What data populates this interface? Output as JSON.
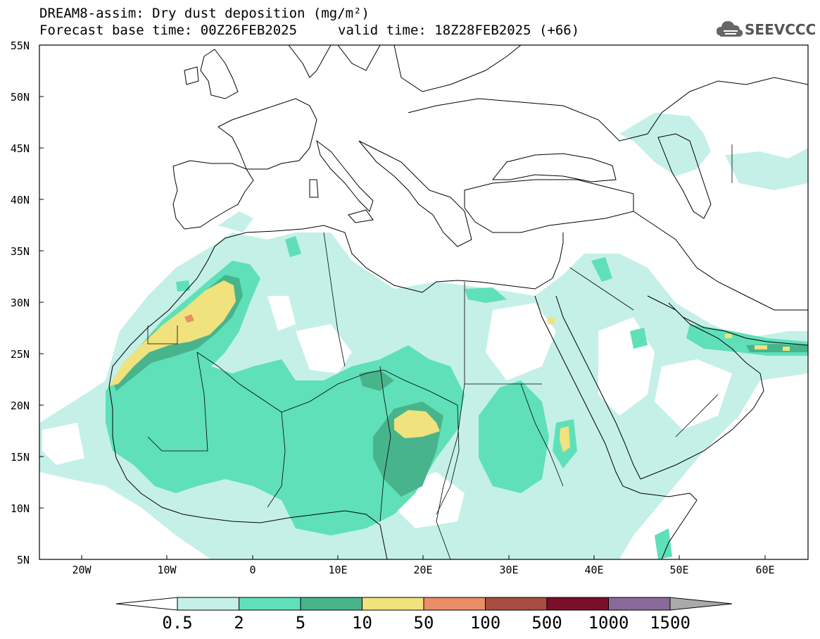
{
  "header": {
    "title_line1": "DREAM8-assim: Dry dust deposition (mg/m²)",
    "forecast_base": "Forecast base time: 00Z26FEB2025",
    "valid_time": "valid time: 18Z28FEB2025 (+66)"
  },
  "logo": {
    "text": "SEEVCCC",
    "icon": "cloud-icon"
  },
  "map": {
    "lat_labels": [
      "55N",
      "50N",
      "45N",
      "40N",
      "35N",
      "30N",
      "25N",
      "20N",
      "15N",
      "10N",
      "5N"
    ],
    "lon_labels": [
      "20W",
      "10W",
      "0",
      "10E",
      "20E",
      "30E",
      "40E",
      "50E",
      "60E"
    ],
    "extent": {
      "lon_min": -25,
      "lon_max": 65,
      "lat_min": 5,
      "lat_max": 55
    }
  },
  "legend": {
    "labels": [
      "0.5",
      "2",
      "5",
      "10",
      "50",
      "100",
      "500",
      "1000",
      "1500"
    ],
    "colors": [
      "#c4f0e8",
      "#5fe0b8",
      "#48b48c",
      "#f0e27c",
      "#e98e68",
      "#a94c42",
      "#7a0f2a",
      "#8a6a9a"
    ],
    "under_color": "#ffffff",
    "over_color": "#aaaaaa"
  }
}
